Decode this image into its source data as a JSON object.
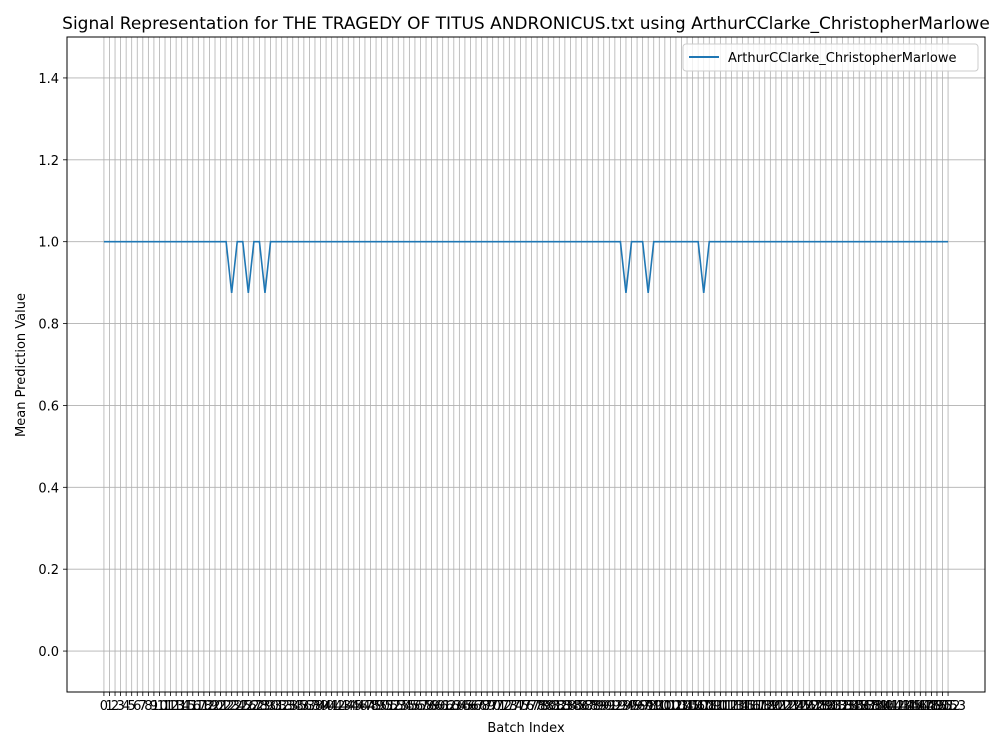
{
  "chart_data": {
    "type": "line",
    "title": "Signal Representation for THE TRAGEDY OF TITUS ANDRONICUS.txt using ArthurCClarke_ChristopherMarlowe",
    "xlabel": "Batch Index",
    "ylabel": "Mean Prediction Value",
    "xlim": [
      -6.65,
      158.65
    ],
    "ylim": [
      -0.1,
      1.5
    ],
    "grid": true,
    "legend_position": "top-right",
    "colors": {
      "series": "#1f77b4",
      "grid": "#b0b0b0"
    },
    "x": [
      0,
      1,
      2,
      3,
      4,
      5,
      6,
      7,
      8,
      9,
      10,
      11,
      12,
      13,
      14,
      15,
      16,
      17,
      18,
      19,
      20,
      21,
      22,
      23,
      24,
      25,
      26,
      27,
      28,
      29,
      30,
      31,
      32,
      33,
      34,
      35,
      36,
      37,
      38,
      39,
      40,
      41,
      42,
      43,
      44,
      45,
      46,
      47,
      48,
      49,
      50,
      51,
      52,
      53,
      54,
      55,
      56,
      57,
      58,
      59,
      60,
      61,
      62,
      63,
      64,
      65,
      66,
      67,
      68,
      69,
      70,
      71,
      72,
      73,
      74,
      75,
      76,
      77,
      78,
      79,
      80,
      81,
      82,
      83,
      84,
      85,
      86,
      87,
      88,
      89,
      90,
      91,
      92,
      93,
      94,
      95,
      96,
      97,
      98,
      99,
      100,
      101,
      102,
      103,
      104,
      105,
      106,
      107,
      108,
      109,
      110,
      111,
      112,
      113,
      114,
      115,
      116,
      117,
      118,
      119,
      120,
      121,
      122,
      123,
      124,
      125,
      126,
      127,
      128,
      129,
      130,
      131,
      132,
      133,
      134,
      135,
      136,
      137,
      138,
      139,
      140,
      141,
      142,
      143,
      144,
      145,
      146,
      147,
      148,
      149,
      150,
      151,
      152
    ],
    "xtick_labels": [
      "0",
      "1",
      "2",
      "3",
      "4",
      "5",
      "6",
      "7",
      "8",
      "9",
      "10",
      "11",
      "12",
      "13",
      "14",
      "15",
      "16",
      "17",
      "18",
      "19",
      "20",
      "21",
      "22",
      "23",
      "24",
      "25",
      "26",
      "27",
      "28",
      "29",
      "30",
      "31",
      "32",
      "33",
      "34",
      "35",
      "36",
      "37",
      "38",
      "39",
      "40",
      "41",
      "42",
      "43",
      "44",
      "45",
      "46",
      "47",
      "48",
      "49",
      "50",
      "51",
      "52",
      "53",
      "54",
      "55",
      "56",
      "57",
      "58",
      "59",
      "60",
      "61",
      "62",
      "63",
      "64",
      "65",
      "66",
      "67",
      "68",
      "69",
      "70",
      "71",
      "72",
      "73",
      "74",
      "75",
      "76",
      "77",
      "78",
      "79",
      "80",
      "81",
      "82",
      "83",
      "84",
      "85",
      "86",
      "87",
      "88",
      "89",
      "90",
      "91",
      "92",
      "93",
      "94",
      "95",
      "96",
      "97",
      "98",
      "99",
      "100",
      "101",
      "102",
      "103",
      "104",
      "105",
      "106",
      "107",
      "108",
      "109",
      "110",
      "111",
      "112",
      "113",
      "114",
      "115",
      "116",
      "117",
      "118",
      "119",
      "120",
      "121",
      "122",
      "123",
      "124",
      "125",
      "126",
      "127",
      "128",
      "129",
      "130",
      "131",
      "132",
      "133",
      "134",
      "135",
      "136",
      "137",
      "138",
      "139",
      "140",
      "141",
      "142",
      "143",
      "144",
      "145",
      "146",
      "147",
      "148",
      "149",
      "150",
      "151",
      "152",
      "153"
    ],
    "yticks": [
      0.0,
      0.2,
      0.4,
      0.6,
      0.8,
      1.0,
      1.2,
      1.4
    ],
    "ytick_labels": [
      "0.0",
      "0.2",
      "0.4",
      "0.6",
      "0.8",
      "1.0",
      "1.2",
      "1.4"
    ],
    "series": [
      {
        "name": "ArthurCClarke_ChristopherMarlowe",
        "values": [
          1,
          1,
          1,
          1,
          1,
          1,
          1,
          1,
          1,
          1,
          1,
          1,
          1,
          1,
          1,
          1,
          1,
          1,
          1,
          1,
          1,
          1,
          1,
          0.875,
          1,
          1,
          0.875,
          1,
          1,
          0.875,
          1,
          1,
          1,
          1,
          1,
          1,
          1,
          1,
          1,
          1,
          1,
          1,
          1,
          1,
          1,
          1,
          1,
          1,
          1,
          1,
          1,
          1,
          1,
          1,
          1,
          1,
          1,
          1,
          1,
          1,
          1,
          1,
          1,
          1,
          1,
          1,
          1,
          1,
          1,
          1,
          1,
          1,
          1,
          1,
          1,
          1,
          1,
          1,
          1,
          1,
          1,
          1,
          1,
          1,
          1,
          1,
          1,
          1,
          1,
          1,
          1,
          1,
          1,
          1,
          0.875,
          1,
          1,
          1,
          0.875,
          1,
          1,
          1,
          1,
          1,
          1,
          1,
          1,
          1,
          0.875,
          1,
          1,
          1,
          1,
          1,
          1,
          1,
          1,
          1,
          1,
          1,
          1,
          1,
          1,
          1,
          1,
          1,
          1,
          1,
          1,
          1,
          1,
          1,
          1,
          1,
          1,
          1,
          1,
          1,
          1,
          1,
          1,
          1,
          1,
          1,
          1,
          1,
          1,
          1,
          1,
          1,
          1,
          1,
          1
        ]
      }
    ]
  }
}
